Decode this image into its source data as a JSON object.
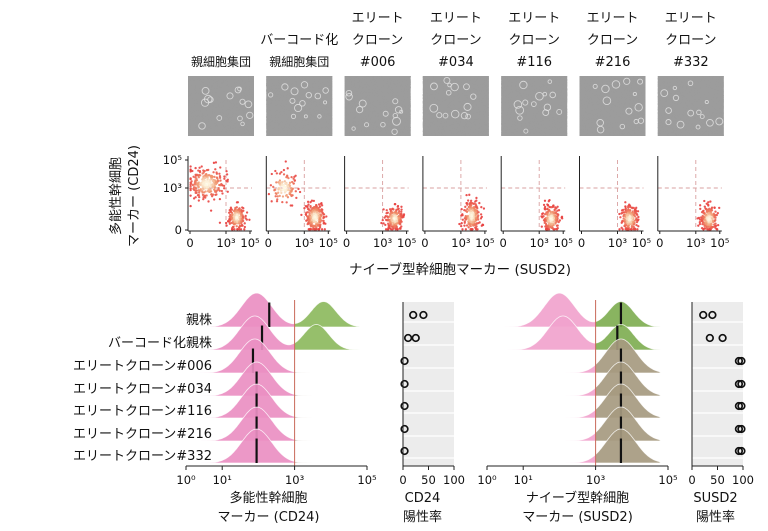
{
  "chart_data": [
    {
      "type": "image-panel",
      "columns": [
        {
          "lines": [
            "",
            "親細胞集団"
          ]
        },
        {
          "lines": [
            "バーコード化",
            "親細胞集団"
          ]
        },
        {
          "lines": [
            "エリート",
            "クローン",
            "#006"
          ]
        },
        {
          "lines": [
            "エリート",
            "クローン",
            "#034"
          ]
        },
        {
          "lines": [
            "エリート",
            "クローン",
            "#116"
          ]
        },
        {
          "lines": [
            "エリート",
            "クローン",
            "#216"
          ]
        },
        {
          "lines": [
            "エリート",
            "クローン",
            "#332"
          ]
        }
      ]
    },
    {
      "type": "scatter",
      "xlabel": "ナイーブ型幹細胞マーカー (SUSD2)",
      "ylabel_lines": [
        "多能性幹細胞",
        "マーカー (CD24)"
      ],
      "x_ticks": [
        "0",
        "10³",
        "10⁵"
      ],
      "y_ticks": [
        "10⁵",
        "10³",
        "0"
      ],
      "xlim_log": [
        0,
        5
      ],
      "ylim_log": [
        0,
        5
      ],
      "gate_log": {
        "x": 3.0,
        "y": 3.0
      },
      "panels": [
        {
          "name": "親細胞集団",
          "clusters": [
            {
              "cx": 1.4,
              "cy": 3.3,
              "sx": 0.75,
              "sy": 0.55,
              "n": 260
            },
            {
              "cx": 3.9,
              "cy": 0.9,
              "sx": 0.35,
              "sy": 0.45,
              "n": 200
            }
          ]
        },
        {
          "name": "バーコード化親細胞集団",
          "clusters": [
            {
              "cx": 1.3,
              "cy": 3.0,
              "sx": 0.6,
              "sy": 0.6,
              "n": 110
            },
            {
              "cx": 3.9,
              "cy": 0.9,
              "sx": 0.4,
              "sy": 0.5,
              "n": 240
            }
          ]
        },
        {
          "name": "#006",
          "clusters": [
            {
              "cx": 4.0,
              "cy": 0.8,
              "sx": 0.35,
              "sy": 0.4,
              "n": 210
            }
          ]
        },
        {
          "name": "#034",
          "clusters": [
            {
              "cx": 3.9,
              "cy": 1.0,
              "sx": 0.35,
              "sy": 0.55,
              "n": 220
            }
          ]
        },
        {
          "name": "#116",
          "clusters": [
            {
              "cx": 4.0,
              "cy": 0.8,
              "sx": 0.35,
              "sy": 0.45,
              "n": 210
            }
          ]
        },
        {
          "name": "#216",
          "clusters": [
            {
              "cx": 4.0,
              "cy": 0.8,
              "sx": 0.35,
              "sy": 0.45,
              "n": 220
            }
          ]
        },
        {
          "name": "#332",
          "clusters": [
            {
              "cx": 4.1,
              "cy": 0.8,
              "sx": 0.35,
              "sy": 0.45,
              "n": 220
            }
          ]
        }
      ]
    },
    {
      "type": "ridgeline",
      "rows": [
        "親株",
        "バーコード化親株",
        "エリートクローン#006",
        "エリートクローン#034",
        "エリートクローン#116",
        "エリートクローン#216",
        "エリートクローン#332"
      ],
      "panels": [
        {
          "name": "cd24",
          "xlabel_lines": [
            "多能性幹細胞",
            "マーカー (CD24)"
          ],
          "x_ticks": [
            "10⁰",
            "10¹",
            "10³",
            "10⁵"
          ],
          "x_tick_log": [
            0,
            1,
            3,
            5
          ],
          "threshold_log": 3.0,
          "medians_log": [
            2.3,
            2.1,
            1.85,
            1.95,
            1.95,
            1.95,
            1.95
          ],
          "peaks_log": [
            [
              1.95,
              3.8
            ],
            [
              1.9,
              3.6
            ],
            [
              1.9
            ],
            [
              1.95
            ],
            [
              1.95
            ],
            [
              1.95
            ],
            [
              1.95
            ]
          ]
        },
        {
          "name": "susd2",
          "xlabel_lines": [
            "ナイーブ型幹細胞",
            "マーカー (SUSD2)"
          ],
          "x_ticks": [
            "10⁰",
            "10¹",
            "10³",
            "10⁵"
          ],
          "x_tick_log": [
            0,
            1,
            3,
            5
          ],
          "threshold_log": 3.0,
          "medians_log": [
            3.7,
            3.6,
            3.7,
            3.7,
            3.7,
            3.7,
            3.7
          ],
          "peaks_log": [
            [
              2.0,
              3.7
            ],
            [
              2.1,
              3.7
            ],
            [
              3.7
            ],
            [
              3.7
            ],
            [
              3.7
            ],
            [
              3.7
            ],
            [
              3.7
            ]
          ]
        }
      ]
    },
    {
      "type": "dot",
      "name": "cd24-positive",
      "xlabel_lines": [
        "CD24",
        "陽性率"
      ],
      "x_ticks": [
        "0",
        "50",
        "100"
      ],
      "xlim": [
        0,
        100
      ],
      "values": [
        [
          20,
          40
        ],
        [
          10,
          25
        ],
        [
          3
        ],
        [
          3
        ],
        [
          3
        ],
        [
          3
        ],
        [
          3
        ]
      ]
    },
    {
      "type": "dot",
      "name": "susd2-positive",
      "xlabel_lines": [
        "SUSD2",
        "陽性率"
      ],
      "x_ticks": [
        "0",
        "50",
        "100"
      ],
      "xlim": [
        0,
        100
      ],
      "values": [
        [
          22,
          40
        ],
        [
          35,
          60
        ],
        [
          92
        ],
        [
          92
        ],
        [
          92
        ],
        [
          92
        ],
        [
          92
        ]
      ]
    }
  ]
}
